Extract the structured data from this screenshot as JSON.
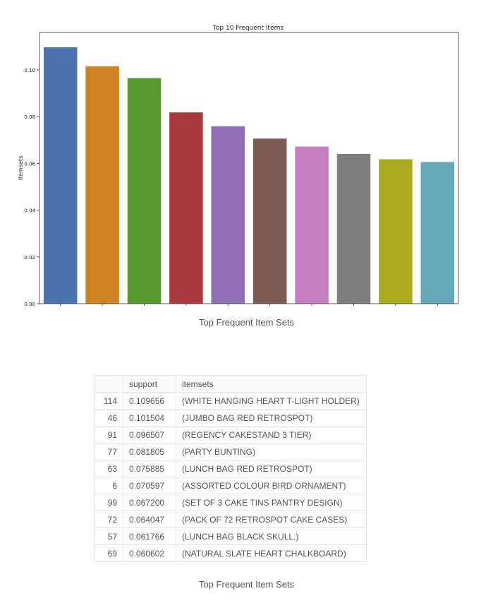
{
  "chart_data": {
    "type": "bar",
    "title": "Top 10 Frequent Items",
    "xlabel": "",
    "ylabel": "itemsets",
    "ylim": [
      0,
      0.116
    ],
    "yticks": [
      "0.00",
      "0.02",
      "0.04",
      "0.06",
      "0.08",
      "0.10"
    ],
    "categories": [
      "(WHITE HANGING HEART T-LIGHT HOLDER)",
      "(JUMBO BAG RED RETROSPOT)",
      "(REGENCY CAKESTAND 3 TIER)",
      "(PARTY BUNTING)",
      "(LUNCH BAG RED RETROSPOT)",
      "(ASSORTED COLOUR BIRD ORNAMENT)",
      "(SET OF 3 CAKE TINS PANTRY DESIGN)",
      "(PACK OF 72 RETROSPOT CAKE CASES)",
      "(LUNCH BAG BLACK SKULL.)",
      "(NATURAL SLATE HEART CHALKBOARD)"
    ],
    "values": [
      0.109656,
      0.101504,
      0.096507,
      0.081805,
      0.075885,
      0.070597,
      0.0672,
      0.064047,
      0.061766,
      0.060602
    ],
    "colors": [
      "#4c72b0",
      "#cf8320",
      "#569a2f",
      "#a9383f",
      "#8f6fb6",
      "#7d5a52",
      "#c57fc0",
      "#7f7f7f",
      "#a8ac1e",
      "#65a9b8"
    ],
    "grid": false,
    "legend": "none"
  },
  "captions": {
    "chart": "Top Frequent Item Sets",
    "table": "Top Frequent Item Sets"
  },
  "table": {
    "headers": [
      "",
      "support",
      "itemsets"
    ],
    "rows": [
      [
        "114",
        "0.109656",
        "(WHITE HANGING HEART T-LIGHT HOLDER)"
      ],
      [
        "46",
        "0.101504",
        "(JUMBO BAG RED RETROSPOT)"
      ],
      [
        "91",
        "0.096507",
        "(REGENCY CAKESTAND 3 TIER)"
      ],
      [
        "77",
        "0.081805",
        "(PARTY BUNTING)"
      ],
      [
        "63",
        "0.075885",
        "(LUNCH BAG RED RETROSPOT)"
      ],
      [
        "6",
        "0.070597",
        "(ASSORTED COLOUR BIRD ORNAMENT)"
      ],
      [
        "99",
        "0.067200",
        "(SET OF 3 CAKE TINS PANTRY DESIGN)"
      ],
      [
        "72",
        "0.064047",
        "(PACK OF 72 RETROSPOT CAKE CASES)"
      ],
      [
        "57",
        "0.061766",
        "(LUNCH BAG BLACK SKULL.)"
      ],
      [
        "69",
        "0.060602",
        "(NATURAL SLATE HEART CHALKBOARD)"
      ]
    ]
  }
}
